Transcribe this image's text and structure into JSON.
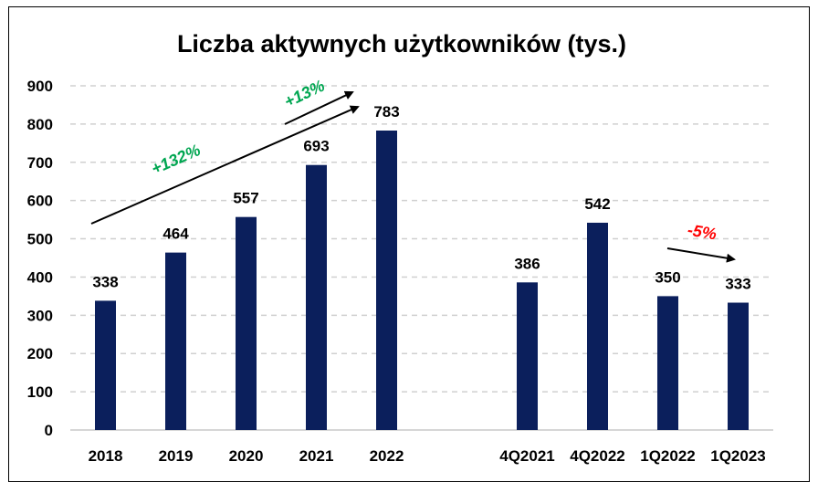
{
  "chart_data": {
    "type": "bar",
    "title": "Liczba aktywnych użytkowników (tys.)",
    "categories": [
      "2018",
      "2019",
      "2020",
      "2021",
      "2022",
      "",
      "4Q2021",
      "4Q2022",
      "1Q2022",
      "1Q2023"
    ],
    "values": [
      338,
      464,
      557,
      693,
      783,
      null,
      386,
      542,
      350,
      333
    ],
    "ylim": [
      0,
      900
    ],
    "yticks": [
      "0",
      "100",
      "200",
      "300",
      "400",
      "500",
      "600",
      "700",
      "800",
      "900"
    ],
    "grid": true,
    "legend": "none",
    "bar_color": "#0b1f5c",
    "annotations": [
      {
        "text": "+132%",
        "color": "#00a651",
        "from_category": "2018",
        "to_category": "2022"
      },
      {
        "text": "+13%",
        "color": "#00a651",
        "from_category": "2021",
        "to_category": "2022"
      },
      {
        "text": "-5%",
        "color": "#ff0000",
        "from_category": "1Q2022",
        "to_category": "1Q2023"
      }
    ]
  }
}
